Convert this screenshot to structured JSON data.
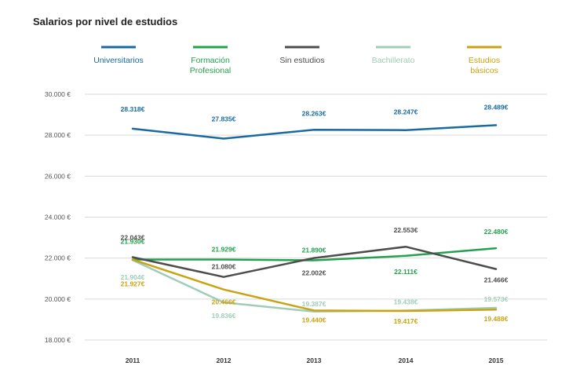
{
  "chart_data": {
    "type": "line",
    "title": "Salarios por nivel de estudios",
    "categories": [
      "2011",
      "2012",
      "2013",
      "2014",
      "2015"
    ],
    "ylim": [
      18000,
      30000
    ],
    "yticks": [
      {
        "value": 18000,
        "label": "18.000 €"
      },
      {
        "value": 20000,
        "label": "20.000 €"
      },
      {
        "value": 22000,
        "label": "22.000 €"
      },
      {
        "value": 24000,
        "label": "24.000 €"
      },
      {
        "value": 26000,
        "label": "26.000 €"
      },
      {
        "value": 28000,
        "label": "28.000 €"
      },
      {
        "value": 30000,
        "label": "30.000 €"
      }
    ],
    "grid": true,
    "legend_position": "top",
    "series": [
      {
        "name": "Universitarios",
        "color": "#1a6aa0",
        "values": [
          28318,
          27835,
          28263,
          28247,
          28489
        ],
        "labels": [
          "28.318€",
          "27.835€",
          "28.263€",
          "28.247€",
          "28.489€"
        ]
      },
      {
        "name": "Formación Profesional",
        "color": "#23a14e",
        "values": [
          21930,
          21929,
          21890,
          22111,
          22480
        ],
        "labels": [
          "21.930€",
          "21.929€",
          "21.890€",
          "22.111€",
          "22.480€"
        ]
      },
      {
        "name": "Sin estudios",
        "color": "#4d4d4d",
        "values": [
          22043,
          21080,
          22002,
          22553,
          21466
        ],
        "labels": [
          "22.043€",
          "21.080€",
          "22.002€",
          "22.553€",
          "21.466€"
        ]
      },
      {
        "name": "Bachillerato",
        "color": "#9fcdb8",
        "values": [
          21904,
          19836,
          19387,
          19438,
          19573
        ],
        "labels": [
          "21.904€",
          "19.836€",
          "19.387€",
          "19.438€",
          "19.573€"
        ]
      },
      {
        "name": "Estudios básicos",
        "color": "#c9a313",
        "values": [
          21927,
          20466,
          19440,
          19417,
          19488
        ],
        "labels": [
          "21.927€",
          "20.466€",
          "19.440€",
          "19.417€",
          "19.488€"
        ]
      }
    ]
  }
}
